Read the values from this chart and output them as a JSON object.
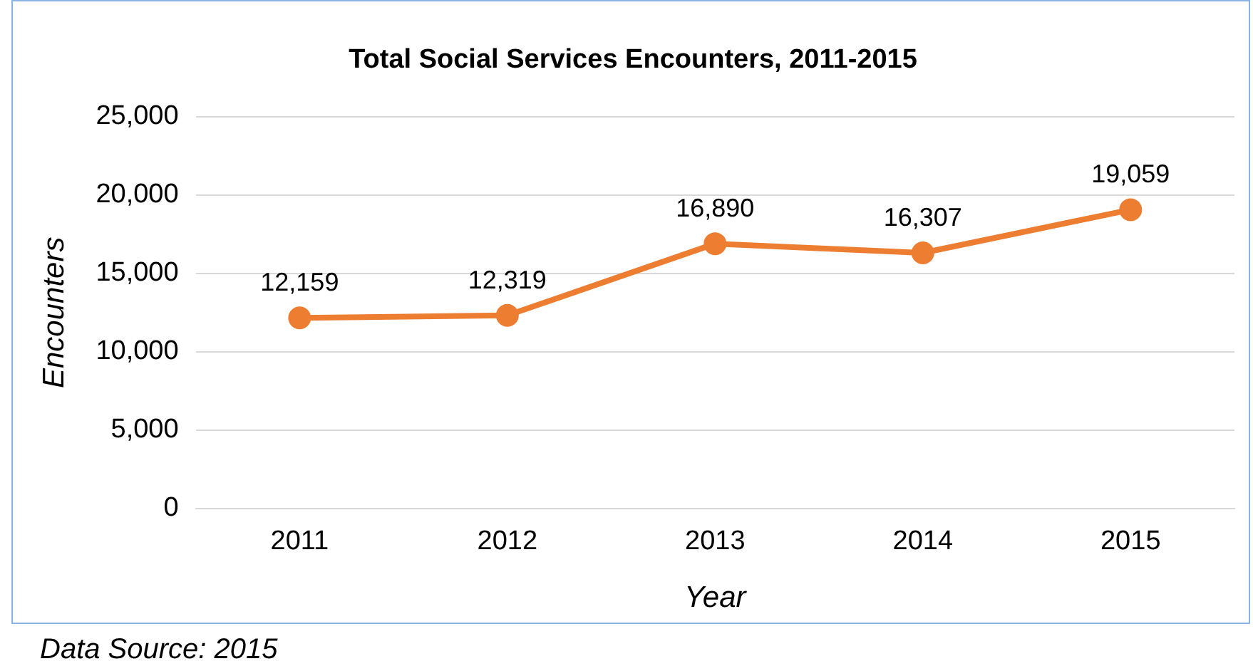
{
  "chart_data": {
    "type": "line",
    "title": "Total Social Services Encounters, 2011-2015",
    "xlabel": "Year",
    "ylabel": "Encounters",
    "categories": [
      "2011",
      "2012",
      "2013",
      "2014",
      "2015"
    ],
    "series": [
      {
        "color": "#ed7d31",
        "values": [
          12159,
          12319,
          16890,
          16307,
          19059
        ],
        "value_labels": [
          "12,159",
          "12,319",
          "16,890",
          "16,307",
          "19,059"
        ]
      }
    ],
    "ylim": [
      0,
      25000
    ],
    "yticks": [
      {
        "value": 0,
        "label": "0"
      },
      {
        "value": 5000,
        "label": "5,000"
      },
      {
        "value": 10000,
        "label": "10,000"
      },
      {
        "value": 15000,
        "label": "15,000"
      },
      {
        "value": 20000,
        "label": "20,000"
      },
      {
        "value": 25000,
        "label": "25,000"
      }
    ],
    "grid": "y",
    "legend": false,
    "marker": "circle",
    "line_style": "solid",
    "annotations": [
      "Data Source: 2015"
    ]
  }
}
